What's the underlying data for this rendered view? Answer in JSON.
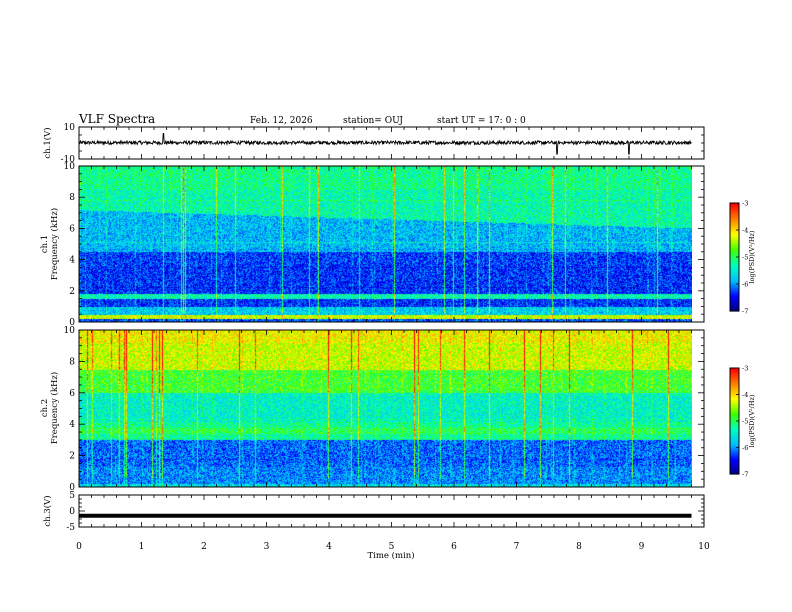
{
  "header": {
    "title": "VLF Spectra",
    "date": "Feb. 12, 2026",
    "station": "station= OUJ",
    "start_time": "start  UT =   17: 0  : 0"
  },
  "chart_data": [
    {
      "type": "line",
      "panel": "ch1-waveform",
      "ylabel": "ch.1(V)",
      "ylim": [
        -10,
        10
      ],
      "yticks": [
        "10",
        "-10"
      ],
      "xlim": [
        0,
        10
      ],
      "series": [
        {
          "values_description_free": true,
          "level": 0.2,
          "spikes_at_min": [
            1.35,
            7.65,
            8.8
          ]
        }
      ]
    },
    {
      "type": "heatmap",
      "panel": "ch1-spectrogram",
      "ylabel": "ch.1\nFrequency (kHz)",
      "ylim": [
        0,
        10
      ],
      "yticks": [
        "0",
        "2",
        "4",
        "6",
        "8",
        "10"
      ],
      "xlim": [
        0,
        10
      ],
      "data_end_min": 9.8,
      "colorbar": {
        "label": "log(PSD)(V²/Hz)",
        "ticks": [
          "-3",
          "-4",
          "-5",
          "-6",
          "-7"
        ],
        "range": [
          -7,
          -3
        ]
      }
    },
    {
      "type": "heatmap",
      "panel": "ch2-spectrogram",
      "ylabel": "ch.2\nFrequency (kHz)",
      "ylim": [
        0,
        10
      ],
      "yticks": [
        "0",
        "2",
        "4",
        "6",
        "8",
        "10"
      ],
      "xlim": [
        0,
        10
      ],
      "data_end_min": 9.8,
      "colorbar": {
        "label": "log(PSD)(V²/Hz)",
        "ticks": [
          "-3",
          "-4",
          "-5",
          "-6",
          "-7"
        ],
        "range": [
          -7,
          -3
        ]
      }
    },
    {
      "type": "line",
      "panel": "ch3-waveform",
      "ylabel": "ch.3(V)",
      "ylim": [
        -5,
        5
      ],
      "yticks": [
        "5",
        "0",
        "-5"
      ],
      "xlim": [
        0,
        10
      ],
      "series": [
        {
          "level": -1.5
        }
      ]
    }
  ],
  "xaxis": {
    "label": "Time  (min)",
    "ticks": [
      "0",
      "1",
      "2",
      "3",
      "4",
      "5",
      "6",
      "7",
      "8",
      "9",
      "10"
    ]
  },
  "colors": {
    "colormap": [
      "#00007f",
      "#0000ff",
      "#00bfff",
      "#00ffbf",
      "#40ff00",
      "#ffff00",
      "#ff8000",
      "#ff0000",
      "#ffffff"
    ]
  }
}
